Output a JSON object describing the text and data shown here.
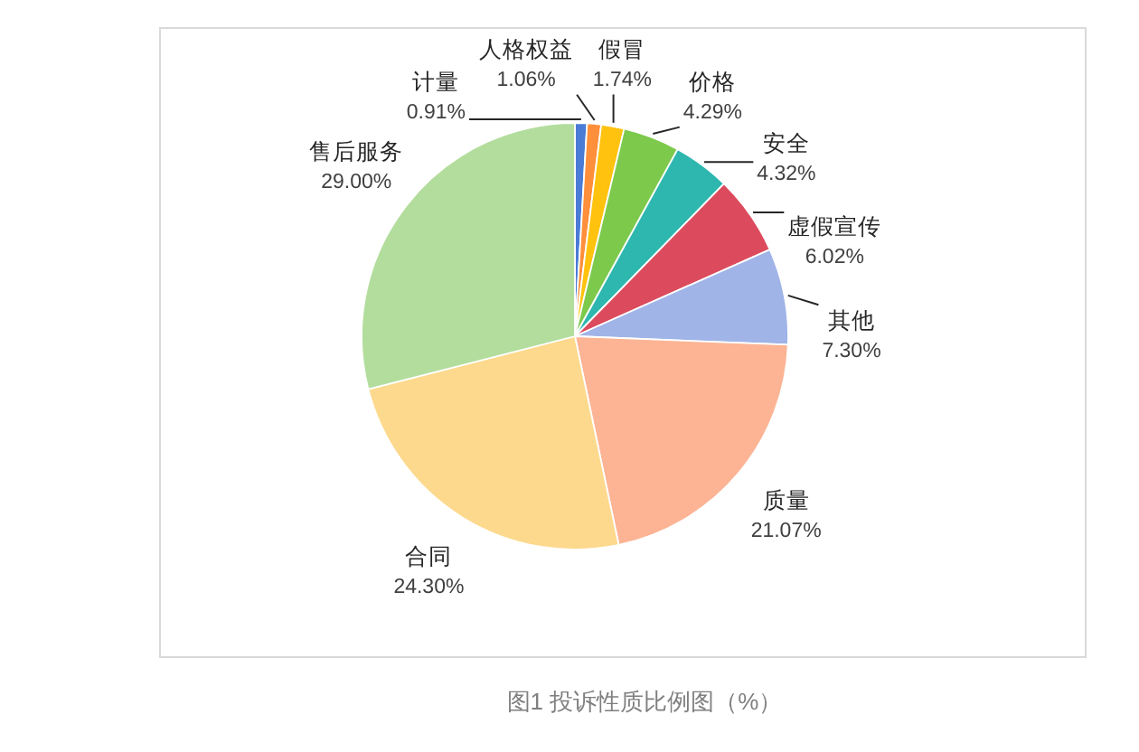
{
  "chart_data": {
    "type": "pie",
    "categories": [
      "计量",
      "人格权益",
      "假冒",
      "价格",
      "安全",
      "虚假宣传",
      "其他",
      "质量",
      "合同",
      "售后服务"
    ],
    "values": [
      0.91,
      1.06,
      1.74,
      4.29,
      4.32,
      6.02,
      7.3,
      21.07,
      24.3,
      29.0
    ],
    "value_labels": [
      "0.91%",
      "1.06%",
      "1.74%",
      "4.29%",
      "4.32%",
      "6.02%",
      "7.30%",
      "21.07%",
      "24.30%",
      "29.00%"
    ],
    "colors": [
      "#4a7bd6",
      "#ff8f3a",
      "#ffc20e",
      "#7dc94c",
      "#2db7ae",
      "#dc4b5d",
      "#a0b4e8",
      "#fcb495",
      "#fdd98e",
      "#b3dd9d"
    ],
    "annotations": [
      "图1 投诉性质比例图（%）"
    ]
  }
}
